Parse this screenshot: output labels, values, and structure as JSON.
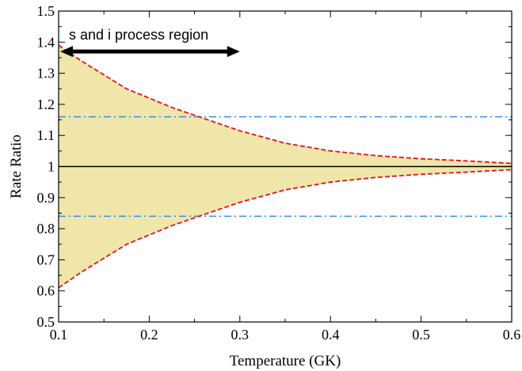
{
  "chart_data": {
    "type": "area",
    "xlabel": "Temperature (GK)",
    "ylabel": "Rate Ratio",
    "xlim": [
      0.1,
      0.6
    ],
    "ylim": [
      0.5,
      1.5
    ],
    "x_ticks": [
      "0.1",
      "0.2",
      "0.3",
      "0.4",
      "0.5",
      "0.6"
    ],
    "y_ticks": [
      "0.5",
      "0.6",
      "0.7",
      "0.8",
      "0.9",
      "1",
      "1.1",
      "1.2",
      "1.3",
      "1.4",
      "1.5"
    ],
    "grid": false,
    "colors": {
      "band_fill": "#f0e6aa",
      "band_edge": "#e8101e",
      "reference": "#000000",
      "threshold": "#3a8fe0",
      "arrow": "#000000"
    },
    "upper_band": {
      "x": [
        0.1,
        0.125,
        0.15,
        0.175,
        0.2,
        0.225,
        0.25,
        0.275,
        0.3,
        0.35,
        0.4,
        0.45,
        0.5,
        0.55,
        0.6
      ],
      "y": [
        1.39,
        1.34,
        1.295,
        1.25,
        1.22,
        1.19,
        1.165,
        1.14,
        1.115,
        1.075,
        1.05,
        1.035,
        1.025,
        1.018,
        1.01
      ]
    },
    "lower_band": {
      "x": [
        0.1,
        0.125,
        0.15,
        0.175,
        0.2,
        0.225,
        0.25,
        0.275,
        0.3,
        0.35,
        0.4,
        0.45,
        0.5,
        0.55,
        0.6
      ],
      "y": [
        0.61,
        0.66,
        0.705,
        0.75,
        0.78,
        0.81,
        0.835,
        0.86,
        0.885,
        0.925,
        0.95,
        0.965,
        0.975,
        0.982,
        0.99
      ]
    },
    "reference_line": 1.0,
    "threshold_lines": [
      1.16,
      0.84
    ],
    "annotation": {
      "text": "s and i process region",
      "arrow_from": 0.1,
      "arrow_to": 0.3,
      "arrow_y": 1.37
    }
  }
}
